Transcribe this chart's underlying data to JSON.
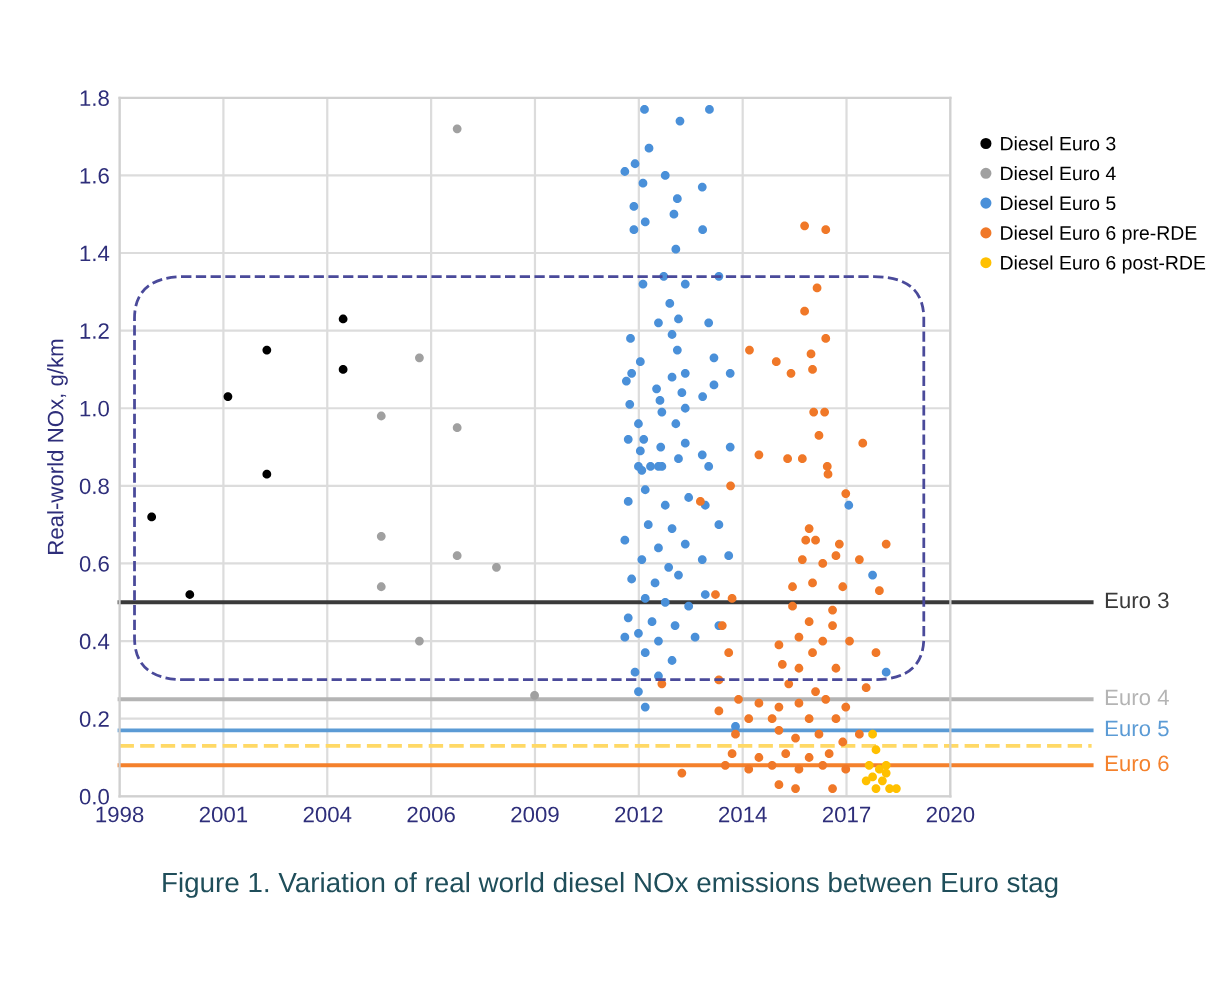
{
  "chart_data": {
    "type": "scatter",
    "ylabel": "Real-world NOx, g/km",
    "annotations": [
      "Figure 1. Variation of real world diesel NOx emissions between Euro stag"
    ],
    "xlim": [
      1998,
      2020
    ],
    "ylim": [
      0,
      1.8
    ],
    "xticks": [
      1998,
      {
        "value": 2000.75,
        "label": "2001"
      },
      {
        "value": 2003.5,
        "label": "2004"
      },
      {
        "value": 2006.25,
        "label": "2006"
      },
      {
        "value": 2009,
        "label": "2009"
      },
      {
        "value": 2011.75,
        "label": "2012"
      },
      {
        "value": 2014.5,
        "label": "2014"
      },
      {
        "value": 2017.25,
        "label": "2017"
      },
      2020
    ],
    "yticks": [
      {
        "value": 0,
        "label": "0.0"
      },
      {
        "value": 0.2,
        "label": "0.2"
      },
      {
        "value": 0.4,
        "label": "0.4"
      },
      {
        "value": 0.6,
        "label": "0.6"
      },
      {
        "value": 0.8,
        "label": "0.8"
      },
      {
        "value": 1.0,
        "label": "1.0"
      },
      1.2,
      1.4,
      1.6,
      1.8
    ],
    "grid": true,
    "legend": "top right",
    "marker": "circle",
    "ref_lines": [
      {
        "axis": "y",
        "value": 0.5,
        "label": "Euro 3",
        "color": "#3a3a3a"
      },
      {
        "axis": "y",
        "value": 0.25,
        "label": "Euro 4",
        "color": "#b4b4b4"
      },
      {
        "axis": "y",
        "value": 0.17,
        "label": "Euro 5",
        "color": "#5b9bd5"
      },
      {
        "axis": "y",
        "value": 0.13,
        "label": null,
        "color": "#ffd966",
        "line_style": "dashed"
      },
      {
        "axis": "y",
        "value": 0.08,
        "label": "Euro 6",
        "color": "#f4812c"
      }
    ],
    "series": [
      {
        "name": "Diesel Euro 3",
        "color": "#000000",
        "x": [
          1998.85,
          1999.86,
          2000.87,
          2001.9,
          2001.9,
          2003.92,
          2003.92
        ],
        "values": [
          0.72,
          0.52,
          1.03,
          1.15,
          0.83,
          1.23,
          1.1
        ]
      },
      {
        "name": "Diesel Euro 4",
        "color": "#a0a0a0",
        "x": [
          2006.94,
          2005.94,
          2004.93,
          2006.94,
          2004.93,
          2006.94,
          2007.98,
          2004.93,
          2005.94,
          2008.99
        ],
        "values": [
          1.72,
          1.13,
          0.98,
          0.95,
          0.67,
          0.62,
          0.59,
          0.54,
          0.4,
          0.26
        ]
      },
      {
        "name": "Diesel Euro 5",
        "color": "#4a90d9",
        "x": [
          2011.9,
          2012.84,
          2013.62,
          2012.02,
          2011.65,
          2011.38,
          2012.45,
          2011.86,
          2013.43,
          2012.77,
          2011.62,
          2012.68,
          2011.92,
          2011.62,
          2013.44,
          2012.73,
          2012.41,
          2012.98,
          2013.87,
          2011.86,
          2012.57,
          2012.27,
          2012.8,
          2013.6,
          2012.63,
          2011.53,
          2012.77,
          2011.79,
          2013.74,
          2014.17,
          2011.56,
          2012.63,
          2012.98,
          2011.42,
          2012.22,
          2013.74,
          2012.89,
          2013.44,
          2012.31,
          2011.51,
          2012.98,
          2012.36,
          2011.74,
          2012.73,
          2011.47,
          2011.88,
          2012.98,
          2012.33,
          2014.17,
          2011.79,
          2012.8,
          2013.43,
          2012.06,
          2011.74,
          2013.6,
          2012.36,
          2011.83,
          2012.27,
          2011.92,
          2013.07,
          2012.45,
          2011.47,
          2013.51,
          2012.63,
          2012.0,
          2013.87,
          2011.38,
          2012.27,
          2012.98,
          2011.83,
          2012.54,
          2013.43,
          2014.13,
          2011.56,
          2012.18,
          2012.8,
          2013.51,
          2011.92,
          2012.45,
          2013.07,
          2011.47,
          2012.1,
          2012.71,
          2013.87,
          2011.74,
          2012.27,
          2013.24,
          2011.38,
          2011.92,
          2012.63,
          2011.65,
          2012.27,
          2011.74,
          2011.92,
          2017.31,
          2017.94,
          2014.31,
          2018.3
        ],
        "values": [
          1.77,
          1.74,
          1.77,
          1.67,
          1.63,
          1.61,
          1.6,
          1.58,
          1.57,
          1.54,
          1.52,
          1.5,
          1.48,
          1.46,
          1.46,
          1.41,
          1.34,
          1.32,
          1.34,
          1.32,
          1.27,
          1.22,
          1.23,
          1.22,
          1.19,
          1.18,
          1.15,
          1.12,
          1.13,
          1.09,
          1.09,
          1.08,
          1.09,
          1.07,
          1.05,
          1.06,
          1.04,
          1.03,
          1.02,
          1.01,
          1.0,
          0.99,
          0.96,
          0.96,
          0.92,
          0.92,
          0.91,
          0.9,
          0.9,
          0.89,
          0.87,
          0.88,
          0.85,
          0.85,
          0.85,
          0.85,
          0.84,
          0.85,
          0.79,
          0.77,
          0.75,
          0.76,
          0.75,
          0.69,
          0.7,
          0.7,
          0.66,
          0.64,
          0.65,
          0.61,
          0.59,
          0.61,
          0.62,
          0.56,
          0.55,
          0.57,
          0.52,
          0.51,
          0.5,
          0.49,
          0.46,
          0.45,
          0.44,
          0.44,
          0.42,
          0.4,
          0.41,
          0.41,
          0.37,
          0.35,
          0.32,
          0.31,
          0.27,
          0.23,
          0.75,
          0.57,
          0.18,
          0.32
        ]
      },
      {
        "name": "Diesel Euro 6 pre-RDE",
        "color": "#f07828",
        "x": [
          2016.14,
          2016.7,
          2016.47,
          2016.14,
          2016.7,
          2014.68,
          2015.39,
          2016.31,
          2015.78,
          2016.35,
          2016.38,
          2016.67,
          2016.52,
          2017.68,
          2014.93,
          2015.69,
          2016.08,
          2016.74,
          2016.76,
          2014.18,
          2013.38,
          2017.23,
          2016.26,
          2016.17,
          2016.43,
          2017.06,
          2018.3,
          2016.08,
          2016.62,
          2016.97,
          2017.59,
          2015.82,
          2016.35,
          2017.15,
          2018.12,
          2013.78,
          2014.22,
          2015.82,
          2016.88,
          2016.26,
          2013.96,
          2016.88,
          2015.99,
          2016.62,
          2017.33,
          2015.46,
          2014.13,
          2016.35,
          2018.03,
          2015.55,
          2015.99,
          2016.97,
          2012.36,
          2013.87,
          2015.72,
          2016.43,
          2017.77,
          2014.39,
          2014.93,
          2015.46,
          2015.99,
          2016.7,
          2017.23,
          2013.87,
          2014.66,
          2015.28,
          2016.26,
          2016.97,
          2014.31,
          2015.46,
          2015.9,
          2016.52,
          2017.15,
          2017.59,
          2014.22,
          2014.93,
          2015.64,
          2016.26,
          2016.79,
          2014.04,
          2014.66,
          2015.28,
          2015.99,
          2016.62,
          2017.23,
          2012.89,
          2015.46,
          2015.9,
          2016.88
        ],
        "values": [
          1.47,
          1.46,
          1.31,
          1.25,
          1.18,
          1.15,
          1.12,
          1.14,
          1.09,
          1.1,
          0.99,
          0.99,
          0.93,
          0.91,
          0.88,
          0.87,
          0.87,
          0.85,
          0.83,
          0.8,
          0.76,
          0.78,
          0.69,
          0.66,
          0.66,
          0.65,
          0.65,
          0.61,
          0.6,
          0.62,
          0.61,
          0.54,
          0.55,
          0.54,
          0.53,
          0.52,
          0.51,
          0.49,
          0.48,
          0.45,
          0.44,
          0.44,
          0.41,
          0.4,
          0.4,
          0.39,
          0.37,
          0.37,
          0.37,
          0.34,
          0.33,
          0.33,
          0.29,
          0.3,
          0.29,
          0.27,
          0.28,
          0.25,
          0.24,
          0.23,
          0.24,
          0.25,
          0.23,
          0.22,
          0.2,
          0.2,
          0.2,
          0.2,
          0.16,
          0.17,
          0.15,
          0.16,
          0.14,
          0.16,
          0.11,
          0.1,
          0.11,
          0.1,
          0.11,
          0.08,
          0.07,
          0.08,
          0.07,
          0.08,
          0.07,
          0.06,
          0.03,
          0.02,
          0.02
        ]
      },
      {
        "name": "Diesel Euro 6 post-RDE",
        "color": "#ffc000",
        "x": [
          2017.94,
          2018.03,
          2017.85,
          2018.12,
          2018.3,
          2017.94,
          2018.2,
          2018.03,
          2018.39,
          2018.57,
          2017.77,
          2018.3
        ],
        "values": [
          0.16,
          0.12,
          0.08,
          0.07,
          0.06,
          0.05,
          0.04,
          0.02,
          0.02,
          0.02,
          0.04,
          0.08
        ]
      }
    ]
  }
}
